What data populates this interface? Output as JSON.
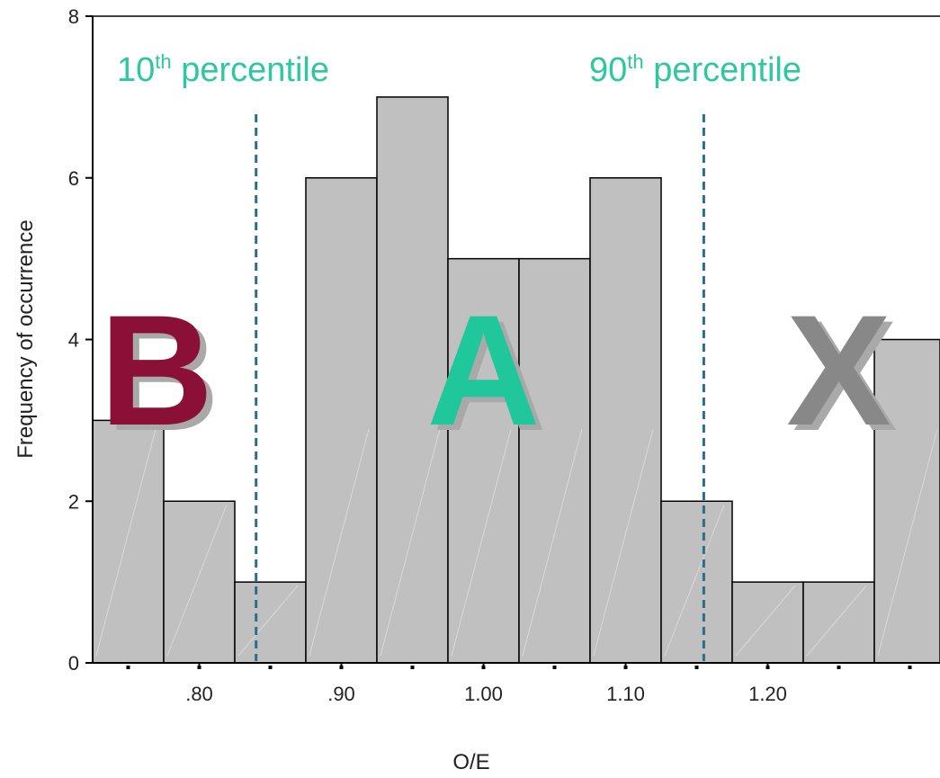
{
  "chart_data": {
    "type": "bar",
    "subtype": "histogram",
    "xlabel": "O/E",
    "ylabel": "Frequency of occurrence",
    "ylim": [
      0,
      8
    ],
    "y_ticks": [
      0,
      2,
      4,
      6,
      8
    ],
    "x_ticks": [
      ".80",
      ".90",
      "1.00",
      "1.10",
      "1.20"
    ],
    "x_tick_values": [
      0.8,
      0.9,
      1.0,
      1.1,
      1.2
    ],
    "bin_width": 0.05,
    "bins": [
      {
        "center": 0.75,
        "value": 3
      },
      {
        "center": 0.8,
        "value": 2
      },
      {
        "center": 0.85,
        "value": 1
      },
      {
        "center": 0.9,
        "value": 6
      },
      {
        "center": 0.95,
        "value": 7
      },
      {
        "center": 1.0,
        "value": 5
      },
      {
        "center": 1.05,
        "value": 5
      },
      {
        "center": 1.1,
        "value": 6
      },
      {
        "center": 1.15,
        "value": 2
      },
      {
        "center": 1.2,
        "value": 1
      },
      {
        "center": 1.25,
        "value": 1
      },
      {
        "center": 1.3,
        "value": 4
      }
    ],
    "bar_color": "#c0c0c0",
    "grid": false,
    "reference_lines": [
      {
        "x": 0.84,
        "label_main": "10",
        "label_sup": "th",
        "label_rest": " percentile"
      },
      {
        "x": 1.155,
        "label_main": "90",
        "label_sup": "th",
        "label_rest": " percentile"
      }
    ],
    "reference_line_color": "#2a6f8a",
    "label_color": "#2fc7a0",
    "zone_letters": [
      {
        "text": "B",
        "color": "#8b1038",
        "at_x": 0.77
      },
      {
        "text": "A",
        "color": "#20c79a",
        "at_x": 1.0
      },
      {
        "text": "X",
        "color": "#888888",
        "at_x": 1.25
      }
    ]
  }
}
